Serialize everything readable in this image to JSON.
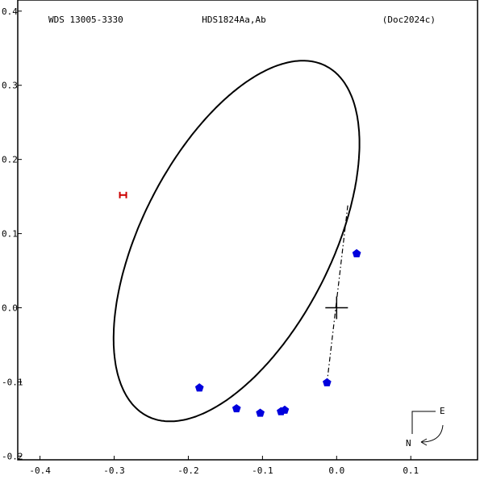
{
  "chart_data": {
    "type": "scatter",
    "title_left": "WDS 13005-3330",
    "title_center": "HDS1824Aa,Ab",
    "title_right": "(Doc2024c)",
    "xlim": [
      -0.43,
      0.19
    ],
    "ylim": [
      -0.205,
      0.415
    ],
    "x_ticks": [
      {
        "value": -0.4,
        "label": "-0.4"
      },
      {
        "value": -0.3,
        "label": "-0.3"
      },
      {
        "value": -0.2,
        "label": "-0.2"
      },
      {
        "value": -0.1,
        "label": "-0.1"
      },
      {
        "value": 0.0,
        "label": "0.0"
      },
      {
        "value": 0.1,
        "label": "0.1"
      }
    ],
    "y_ticks": [
      {
        "value": 0.4,
        "label": "0.4"
      },
      {
        "value": 0.3,
        "label": "0.3"
      },
      {
        "value": 0.2,
        "label": "0.2"
      },
      {
        "value": 0.1,
        "label": "0.1"
      },
      {
        "value": 0.0,
        "label": "0.0"
      },
      {
        "value": -0.1,
        "label": "-0.1"
      },
      {
        "value": -0.2,
        "label": "-0.2"
      }
    ],
    "orbit": {
      "center": [
        -0.135,
        0.09
      ],
      "semi_major": 0.265,
      "semi_minor": 0.128,
      "rotation_deg": 63,
      "color": "#000000"
    },
    "observations": {
      "color": "#0000dd",
      "points": [
        {
          "x": 0.027,
          "y": 0.073
        },
        {
          "x": -0.013,
          "y": -0.101
        },
        {
          "x": -0.07,
          "y": -0.138
        },
        {
          "x": -0.075,
          "y": -0.14
        },
        {
          "x": -0.103,
          "y": -0.142
        },
        {
          "x": -0.135,
          "y": -0.136
        },
        {
          "x": -0.185,
          "y": -0.108
        }
      ]
    },
    "node_line": {
      "from": {
        "x": 0.015,
        "y": 0.138
      },
      "to": {
        "x": -0.013,
        "y": -0.101
      }
    },
    "primary": {
      "x": 0.0,
      "y": 0.0
    },
    "red_marker": {
      "x": -0.288,
      "y": 0.152,
      "color": "#cc0000"
    },
    "compass": {
      "east_label": "E",
      "north_label": "N"
    }
  }
}
